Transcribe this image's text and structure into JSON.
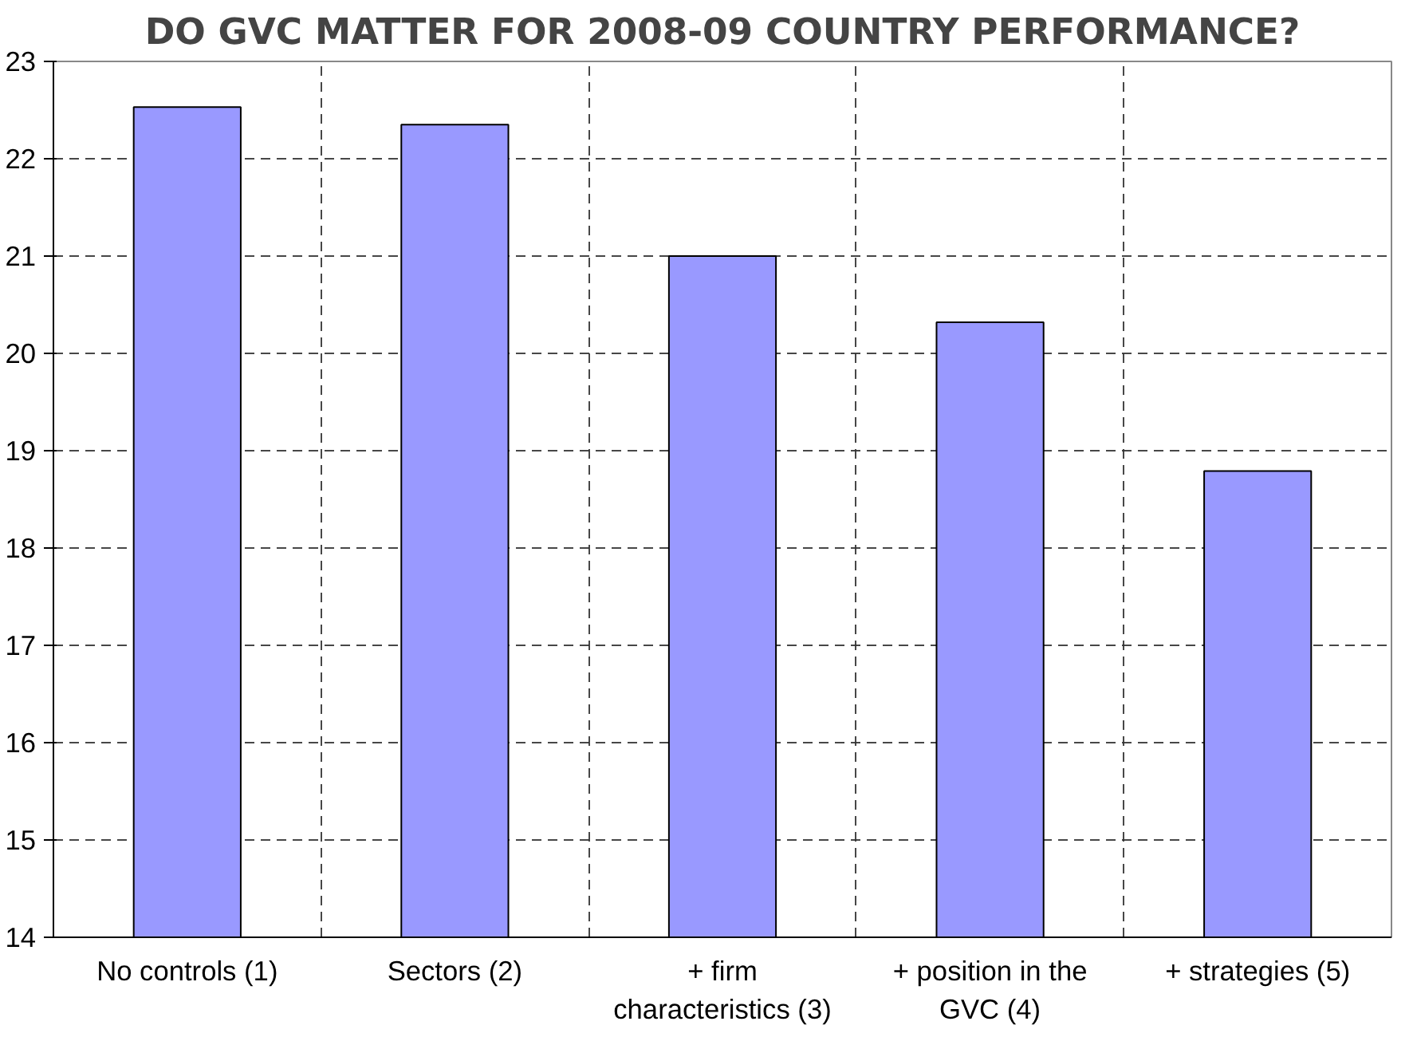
{
  "chart_data": {
    "type": "bar",
    "title": "DO GVC MATTER FOR 2008-09 COUNTRY PERFORMANCE?",
    "categories": [
      "No controls (1)",
      "Sectors (2)",
      "+ firm characteristics (3)",
      "+ position in the GVC (4)",
      "+ strategies (5)"
    ],
    "values": [
      22.53,
      22.35,
      21.0,
      20.32,
      18.79
    ],
    "color": "#9999ff",
    "ylim": [
      14,
      23
    ],
    "yticks": [
      14,
      15,
      16,
      17,
      18,
      19,
      20,
      21,
      22,
      23
    ],
    "grid": true
  }
}
